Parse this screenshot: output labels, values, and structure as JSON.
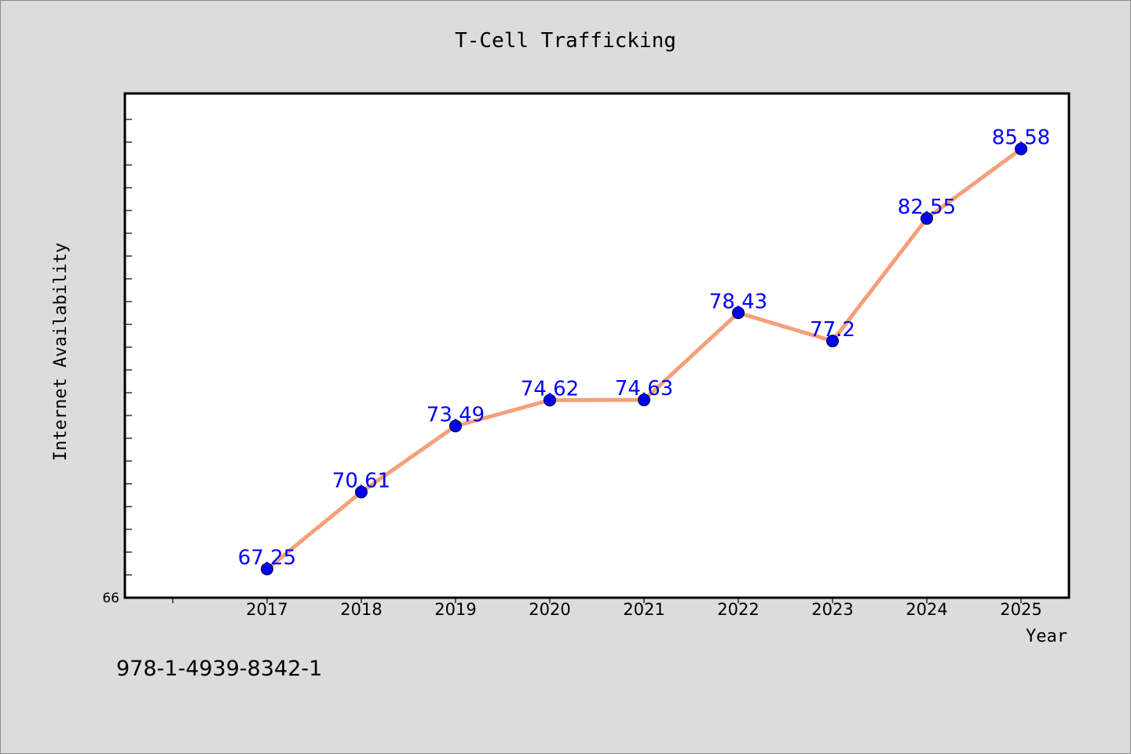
{
  "chart_data": {
    "type": "line",
    "title": "T-Cell Trafficking",
    "xlabel": "Year",
    "ylabel": "Internet Availability",
    "categories": [
      "2017",
      "2018",
      "2019",
      "2020",
      "2021",
      "2022",
      "2023",
      "2024",
      "2025"
    ],
    "series": [
      {
        "values": [
          67.25,
          70.61,
          73.49,
          74.62,
          74.63,
          78.43,
          77.2,
          82.55,
          85.58
        ],
        "data_labels": [
          "67.25",
          "70.61",
          "73.49",
          "74.62",
          "74.63",
          "78.43",
          "77.2",
          "82.55",
          "85.58"
        ],
        "line_color": "#f4a07a",
        "marker_color": "#0000ee"
      }
    ],
    "y_tick_labels": [
      "66"
    ],
    "ylim": [
      66,
      88
    ],
    "grid": false,
    "legend": "none",
    "label_color": "#0000ff",
    "background_color": "#dcdcdc",
    "plot_background_color": "#ffffff"
  },
  "footer": {
    "text": "978-1-4939-8342-1"
  }
}
